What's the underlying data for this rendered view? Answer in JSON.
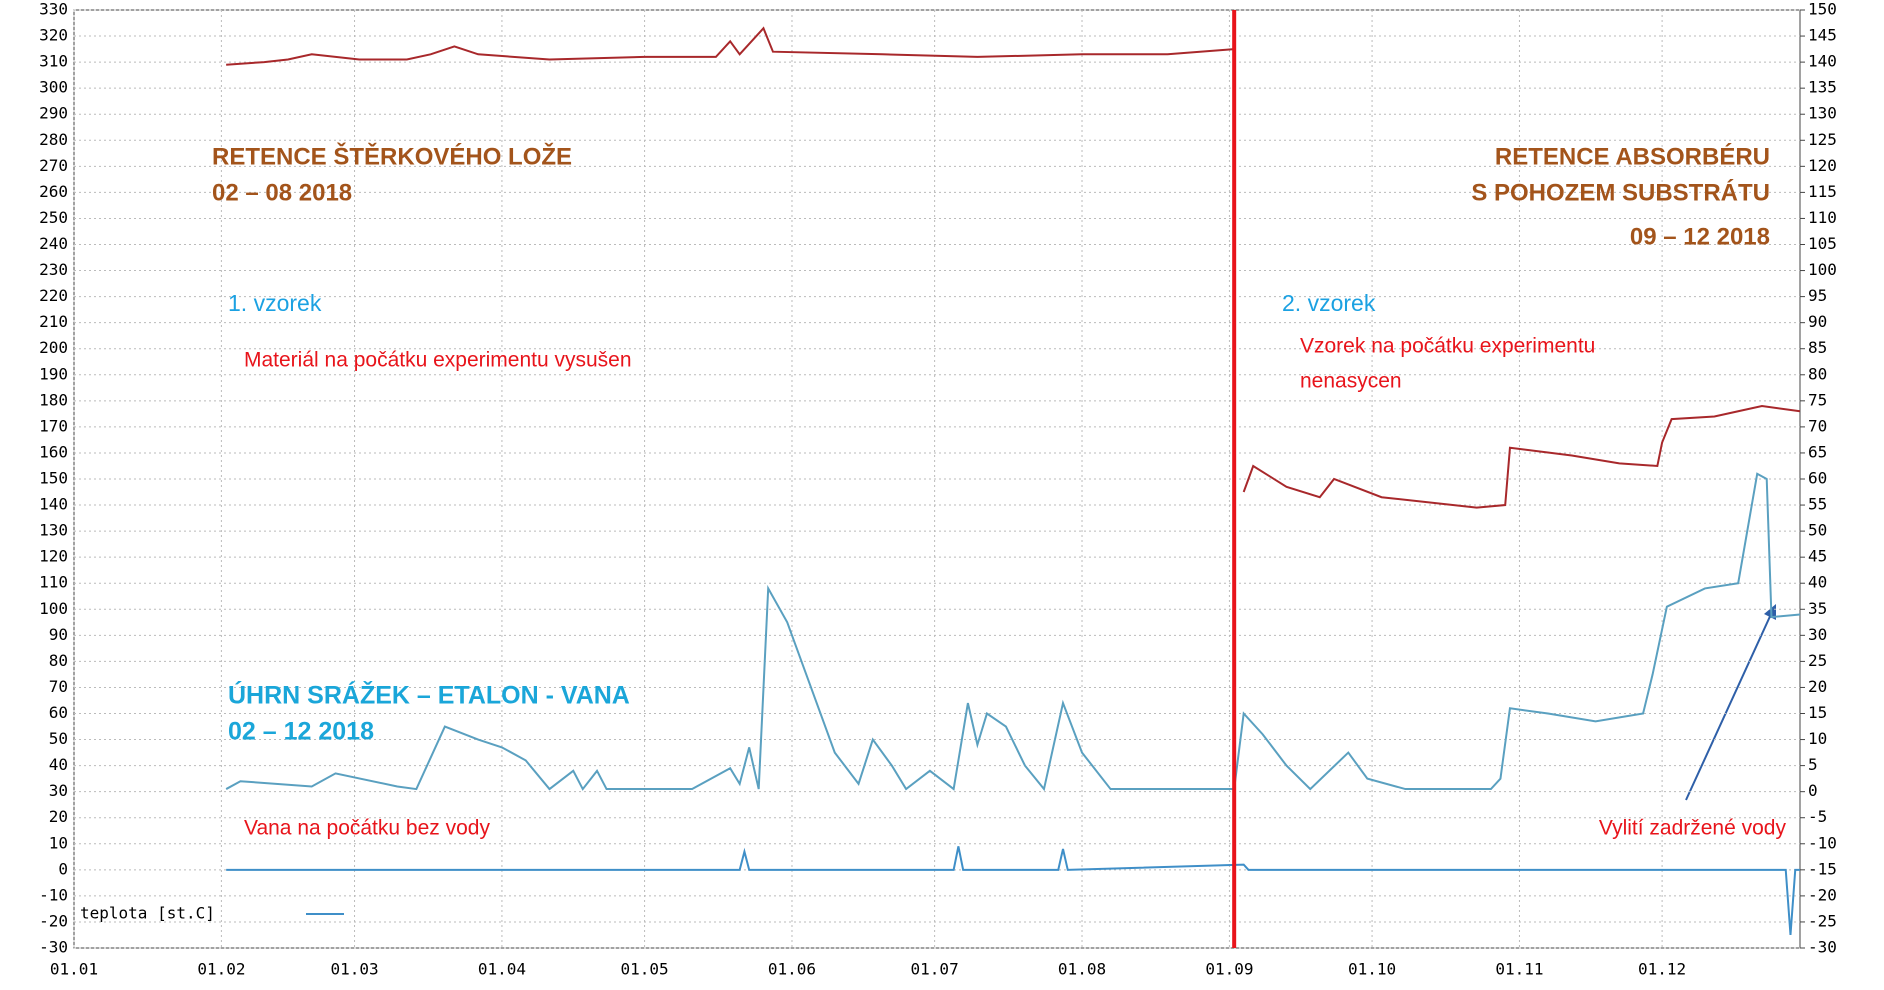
{
  "chart_data": {
    "type": "line",
    "xlim": [
      0,
      363
    ],
    "xticks": [
      {
        "value": 0,
        "label": "01.01"
      },
      {
        "value": 31,
        "label": "01.02"
      },
      {
        "value": 59,
        "label": "01.03"
      },
      {
        "value": 90,
        "label": "01.04"
      },
      {
        "value": 120,
        "label": "01.05"
      },
      {
        "value": 151,
        "label": "01.06"
      },
      {
        "value": 181,
        "label": "01.07"
      },
      {
        "value": 212,
        "label": "01.08"
      },
      {
        "value": 243,
        "label": "01.09"
      },
      {
        "value": 273,
        "label": "01.10"
      },
      {
        "value": 304,
        "label": "01.11"
      },
      {
        "value": 334,
        "label": "01.12"
      }
    ],
    "ylim": [
      -30,
      330
    ],
    "yticks": [
      -30,
      -20,
      -10,
      0,
      10,
      20,
      30,
      40,
      50,
      60,
      70,
      80,
      90,
      100,
      110,
      120,
      130,
      140,
      150,
      160,
      170,
      180,
      190,
      200,
      210,
      220,
      230,
      240,
      250,
      260,
      270,
      280,
      290,
      300,
      310,
      320,
      330
    ],
    "y2lim": [
      -30,
      150
    ],
    "y2ticks": [
      -30,
      -25,
      -20,
      -15,
      -10,
      -5,
      0,
      5,
      10,
      15,
      20,
      25,
      30,
      35,
      40,
      45,
      50,
      55,
      60,
      65,
      70,
      75,
      80,
      85,
      90,
      95,
      100,
      105,
      110,
      115,
      120,
      125,
      130,
      135,
      140,
      145,
      150
    ],
    "grid": true,
    "legend": "bottom-left",
    "vline": 244,
    "vline_color": "#e8141b",
    "series": [
      {
        "color": "#a8282b",
        "x": [
          32,
          40,
          45,
          50,
          60,
          70,
          75,
          80,
          85,
          100,
          120,
          135,
          138,
          140,
          145,
          147,
          170,
          190,
          212,
          230,
          244,
          245,
          246,
          248,
          255,
          262,
          265,
          275,
          295,
          301,
          302,
          315,
          325,
          333,
          334,
          336,
          345,
          350,
          355,
          363
        ],
        "values": [
          309,
          310,
          311,
          313,
          311,
          311,
          313,
          316,
          313,
          311,
          312,
          312,
          318,
          313,
          323,
          314,
          313,
          312,
          313,
          313,
          315,
          null,
          145,
          155,
          147,
          143,
          150,
          143,
          139,
          140,
          162,
          159,
          156,
          155,
          164,
          173,
          174,
          176,
          178,
          176
        ]
      },
      {
        "color": "#5aa0c0",
        "axis": "y2",
        "x": [
          32,
          35,
          50,
          55,
          68,
          72,
          75,
          78,
          85,
          90,
          95,
          100,
          105,
          107,
          110,
          112,
          130,
          138,
          140,
          142,
          144,
          146,
          150,
          155,
          160,
          165,
          168,
          172,
          175,
          180,
          185,
          188,
          190,
          192,
          196,
          200,
          204,
          208,
          212,
          218,
          230,
          244,
          246,
          250,
          255,
          260,
          268,
          272,
          280,
          298,
          300,
          302,
          310,
          320,
          330,
          332,
          335,
          343,
          350,
          354,
          356,
          357,
          363
        ],
        "values": [
          0.5,
          2,
          1,
          3.5,
          1,
          0.5,
          6.5,
          12.5,
          10,
          8.5,
          6,
          0.5,
          4,
          0.5,
          4,
          0.5,
          0.5,
          4.5,
          1.5,
          8.5,
          0.5,
          39,
          32.5,
          20,
          7.5,
          1.5,
          10,
          5,
          0.5,
          4,
          0.5,
          17,
          9,
          15,
          12.5,
          5,
          0.5,
          17,
          7.5,
          0.5,
          0.5,
          0.5,
          15,
          11,
          5,
          0.5,
          7.5,
          2.5,
          0.5,
          0.5,
          2.5,
          16,
          15,
          13.5,
          15,
          22.5,
          35.5,
          39,
          40,
          61,
          60,
          33.5,
          34
        ]
      },
      {
        "name": "teplota [st.C]",
        "color": "#3f8fc8",
        "x": [
          32,
          140,
          141,
          142,
          185,
          186,
          187,
          207,
          208,
          209,
          246,
          247,
          300,
          360,
          361,
          362,
          363
        ],
        "values": [
          0,
          0,
          7,
          0,
          0,
          9,
          0,
          0,
          8,
          0,
          2,
          0,
          0,
          0,
          -25,
          0,
          0
        ]
      }
    ],
    "annotations": [
      {
        "text": "RETENCE ŠTĚRKOVÉHO LOŽE",
        "color": "#a3541b"
      },
      {
        "text": "02 – 08 2018",
        "color": "#a3541b"
      },
      {
        "text": "RETENCE ABSORBÉRU",
        "color": "#a3541b"
      },
      {
        "text": "S POHOZEM SUBSTRÁTU",
        "color": "#a3541b"
      },
      {
        "text": "09 – 12  2018",
        "color": "#a3541b"
      },
      {
        "text": "1. vzorek",
        "color": "#1ba1e2"
      },
      {
        "text": "Materiál na počátku experimentu vysušen",
        "color": "#e8141b"
      },
      {
        "text": "2. vzorek",
        "color": "#1ba1e2"
      },
      {
        "text": "Vzorek na počátku experimentu",
        "color": "#e8141b"
      },
      {
        "text": "nenasycen",
        "color": "#e8141b"
      },
      {
        "text": "ÚHRN SRÁŽEK – ETALON - VANA",
        "color": "#1aa6d9"
      },
      {
        "text": "02 – 12  2018",
        "color": "#1aa6d9"
      },
      {
        "text": "Vana na počátku bez vody",
        "color": "#e8141b"
      },
      {
        "text": "Vylití zadržené vody",
        "color": "#e8141b"
      }
    ]
  }
}
